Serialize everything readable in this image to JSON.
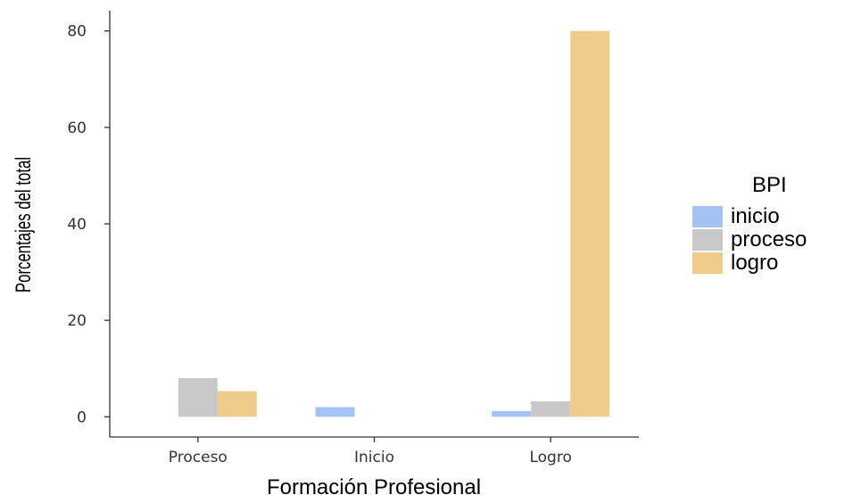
{
  "chart_data": {
    "type": "bar",
    "title": "",
    "xlabel": "Formación Profesional",
    "ylabel": "Porcentajes del total",
    "categories": [
      "Proceso",
      "Inicio",
      "Logro"
    ],
    "series": [
      {
        "name": "inicio",
        "color": "#a4c2f4",
        "values": [
          0,
          2.0,
          1.2
        ]
      },
      {
        "name": "proceso",
        "color": "#c8c8c8",
        "values": [
          8.0,
          0,
          3.2
        ]
      },
      {
        "name": "logro",
        "color": "#f0cc8c",
        "values": [
          5.3,
          0,
          80.0
        ]
      }
    ],
    "yticks": [
      0,
      20,
      40,
      60,
      80
    ],
    "ylim": [
      -4.2,
      84.2
    ],
    "grid": false,
    "legend": {
      "title": "BPI",
      "position": "right"
    }
  }
}
